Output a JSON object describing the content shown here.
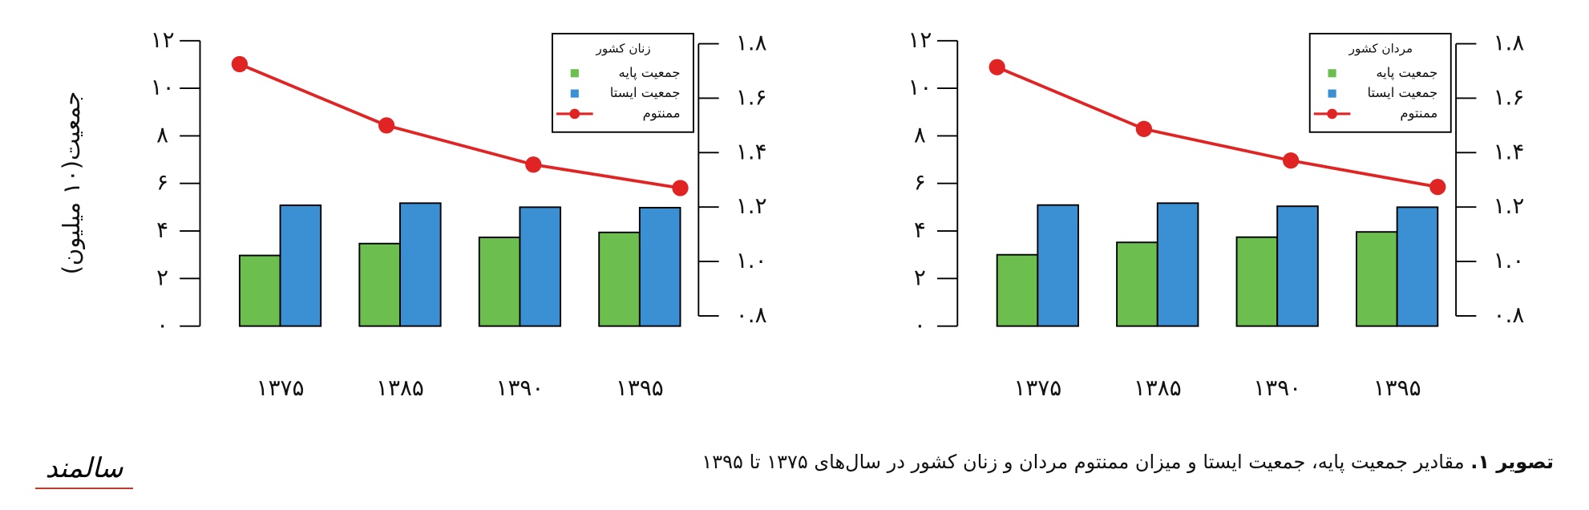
{
  "ylabel": "جمعیت(۱۰ میلیون)",
  "caption": {
    "bold": "تصویر ۱.",
    "text": "مقادیر جمعیت پایه، جمعیت ایستا و میزان ممنتوم مردان و زنان کشور در سال‌های ۱۳۷۵ تا ۱۳۹۵"
  },
  "logo": "سالمند",
  "chart_data": [
    {
      "type": "bar",
      "title": "زنان کشور",
      "categories": [
        "۱۳۷۵",
        "۱۳۸۵",
        "۱۳۹۰",
        "۱۳۹۵"
      ],
      "series": [
        {
          "name": "جمعیت پایه",
          "color": "#6cbf4f",
          "values": [
            2.97,
            3.47,
            3.73,
            3.94
          ]
        },
        {
          "name": "جمعیت ایستا",
          "color": "#3b8fd3",
          "values": [
            5.08,
            5.17,
            5.0,
            4.98
          ]
        },
        {
          "name": "ممنتوم",
          "color": "#e02424",
          "type": "line",
          "axis": "y2",
          "values": [
            1.725,
            1.5,
            1.356,
            1.27
          ]
        }
      ],
      "ylim": [
        0,
        12
      ],
      "yticks": [
        {
          "value": 0,
          "label": "۰"
        },
        {
          "value": 2,
          "label": "۲"
        },
        {
          "value": 4,
          "label": "۴"
        },
        {
          "value": 6,
          "label": "۶"
        },
        {
          "value": 8,
          "label": "۸"
        },
        {
          "value": 10,
          "label": "۱۰"
        },
        {
          "value": 12,
          "label": "۱۲"
        }
      ],
      "y2lim": [
        0.8,
        1.8
      ],
      "y2ticks": [
        {
          "value": 0.8,
          "label": "۰.۸"
        },
        {
          "value": 1.0,
          "label": "۱.۰"
        },
        {
          "value": 1.2,
          "label": "۱.۲"
        },
        {
          "value": 1.4,
          "label": "۱.۴"
        },
        {
          "value": 1.6,
          "label": "۱.۶"
        },
        {
          "value": 1.8,
          "label": "۱.۸"
        }
      ]
    },
    {
      "type": "bar",
      "title": "مردان کشور",
      "categories": [
        "۱۳۷۵",
        "۱۳۸۵",
        "۱۳۹۰",
        "۱۳۹۵"
      ],
      "series": [
        {
          "name": "جمعیت پایه",
          "color": "#6cbf4f",
          "values": [
            3.0,
            3.52,
            3.74,
            3.96
          ]
        },
        {
          "name": "جمعیت ایستا",
          "color": "#3b8fd3",
          "values": [
            5.09,
            5.17,
            5.04,
            5.0
          ]
        },
        {
          "name": "ممنتوم",
          "color": "#e02424",
          "type": "line",
          "axis": "y2",
          "values": [
            1.714,
            1.487,
            1.371,
            1.274
          ]
        }
      ],
      "ylim": [
        0,
        12
      ],
      "yticks": [
        {
          "value": 0,
          "label": "۰"
        },
        {
          "value": 2,
          "label": "۲"
        },
        {
          "value": 4,
          "label": "۴"
        },
        {
          "value": 6,
          "label": "۶"
        },
        {
          "value": 8,
          "label": "۸"
        },
        {
          "value": 10,
          "label": "۱۰"
        },
        {
          "value": 12,
          "label": "۱۲"
        }
      ],
      "y2lim": [
        0.8,
        1.8
      ],
      "y2ticks": [
        {
          "value": 0.8,
          "label": "۰.۸"
        },
        {
          "value": 1.0,
          "label": "۱.۰"
        },
        {
          "value": 1.2,
          "label": "۱.۲"
        },
        {
          "value": 1.4,
          "label": "۱.۴"
        },
        {
          "value": 1.6,
          "label": "۱.۶"
        },
        {
          "value": 1.8,
          "label": "۱.۸"
        }
      ]
    }
  ]
}
